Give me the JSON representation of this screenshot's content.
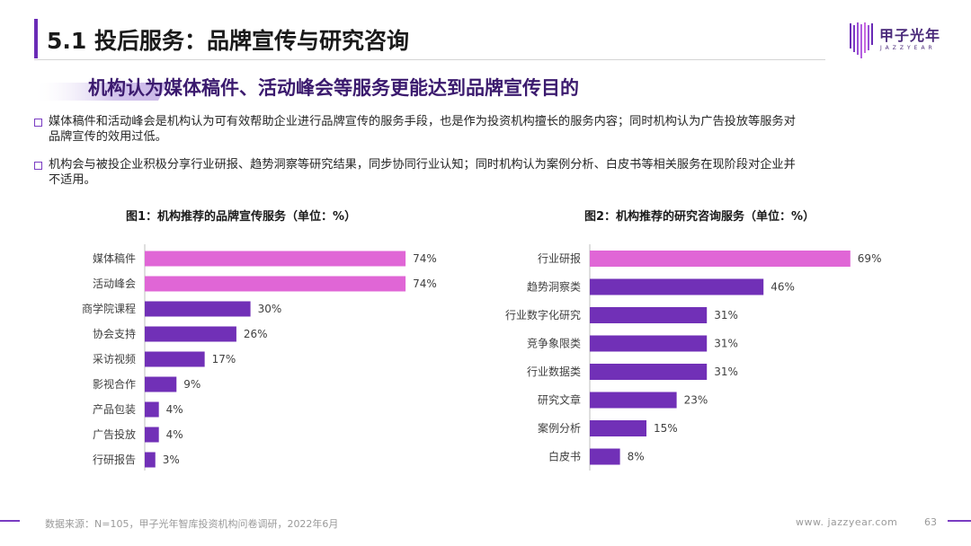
{
  "header": {
    "title": "5.1 投后服务：品牌宣传与研究咨询",
    "logo_cn": "甲子光年",
    "logo_en": "JAZZYEAR"
  },
  "subtitle": "机构认为媒体稿件、活动峰会等服务更能达到品牌宣传目的",
  "bullets": [
    {
      "line1": "媒体稿件和活动峰会是机构认为可有效帮助企业进行品牌宣传的服务手段，也是作为投资机构擅长的服务内容；同时机构认为广告投放等服务对",
      "line2": "品牌宣传的效用过低。"
    },
    {
      "line1": "机构会与被投企业积极分享行业研报、趋势洞察等研究结果，同步协同行业认知；同时机构认为案例分析、白皮书等相关服务在现阶段对企业并",
      "line2": "不适用。"
    }
  ],
  "colors": {
    "accent_purple": "#6a2bb6",
    "highlight_pink": "#e066d6",
    "bar_purple": "#7130b7"
  },
  "chart_data": [
    {
      "type": "bar",
      "orientation": "horizontal",
      "title": "图1：机构推荐的品牌宣传服务（单位：%）",
      "categories": [
        "媒体稿件",
        "活动峰会",
        "商学院课程",
        "协会支持",
        "采访视频",
        "影视合作",
        "产品包装",
        "广告投放",
        "行研报告"
      ],
      "values": [
        74,
        74,
        30,
        26,
        17,
        9,
        4,
        4,
        3
      ],
      "value_suffix": "%",
      "highlight_indices": [
        0,
        1
      ]
    },
    {
      "type": "bar",
      "orientation": "horizontal",
      "title": "图2：机构推荐的研究咨询服务（单位：%）",
      "categories": [
        "行业研报",
        "趋势洞察类",
        "行业数字化研究",
        "竞争象限类",
        "行业数据类",
        "研究文章",
        "案例分析",
        "白皮书"
      ],
      "values": [
        69,
        46,
        31,
        31,
        31,
        23,
        15,
        8
      ],
      "value_suffix": "%",
      "highlight_indices": [
        0
      ]
    }
  ],
  "footer": {
    "source": "数据来源：N=105，甲子光年智库投资机构问卷调研，2022年6月",
    "website": "www. jazzyear.com",
    "page": "63"
  }
}
